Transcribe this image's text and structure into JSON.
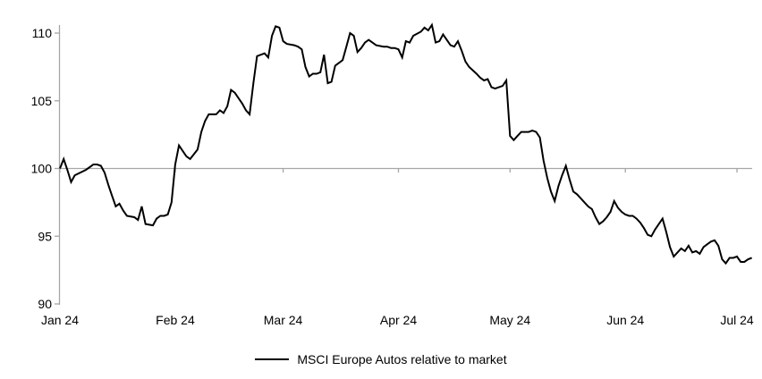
{
  "chart_data": {
    "type": "line",
    "title": "",
    "legend": {
      "label": "MSCI Europe Autos relative to market",
      "position": "bottom-center"
    },
    "line_color": "#000000",
    "axis_color": "#a6a6a6",
    "text_color": "#000000",
    "grid": false,
    "y_axis": {
      "min": 90,
      "max": 110,
      "tick_values": [
        90,
        95,
        100,
        105,
        110
      ],
      "axis_crosses_at": 100
    },
    "x_axis": {
      "ticks": [
        {
          "date": "2024-01-01",
          "label": "Jan 24"
        },
        {
          "date": "2024-02-01",
          "label": "Feb 24"
        },
        {
          "date": "2024-03-01",
          "label": "Mar 24"
        },
        {
          "date": "2024-04-01",
          "label": "Apr 24"
        },
        {
          "date": "2024-05-01",
          "label": "May 24"
        },
        {
          "date": "2024-06-01",
          "label": "Jun 24"
        },
        {
          "date": "2024-07-01",
          "label": "Jul 24"
        }
      ]
    },
    "series": [
      {
        "name": "MSCI Europe Autos relative to market",
        "points": [
          [
            "2024-01-01",
            100.0
          ],
          [
            "2024-01-02",
            100.7
          ],
          [
            "2024-01-03",
            99.9
          ],
          [
            "2024-01-04",
            99.0
          ],
          [
            "2024-01-05",
            99.5
          ],
          [
            "2024-01-08",
            99.9
          ],
          [
            "2024-01-09",
            100.1
          ],
          [
            "2024-01-10",
            100.3
          ],
          [
            "2024-01-11",
            100.3
          ],
          [
            "2024-01-12",
            100.2
          ],
          [
            "2024-01-13",
            99.7
          ],
          [
            "2024-01-14",
            98.8
          ],
          [
            "2024-01-15",
            98.0
          ],
          [
            "2024-01-16",
            97.2
          ],
          [
            "2024-01-17",
            97.4
          ],
          [
            "2024-01-18",
            96.9
          ],
          [
            "2024-01-19",
            96.5
          ],
          [
            "2024-01-21",
            96.4
          ],
          [
            "2024-01-22",
            96.2
          ],
          [
            "2024-01-23",
            97.2
          ],
          [
            "2024-01-24",
            95.9
          ],
          [
            "2024-01-26",
            95.8
          ],
          [
            "2024-01-27",
            96.3
          ],
          [
            "2024-01-28",
            96.5
          ],
          [
            "2024-01-29",
            96.5
          ],
          [
            "2024-01-30",
            96.6
          ],
          [
            "2024-01-31",
            97.5
          ],
          [
            "2024-02-01",
            100.3
          ],
          [
            "2024-02-02",
            101.7
          ],
          [
            "2024-02-04",
            100.9
          ],
          [
            "2024-02-05",
            100.7
          ],
          [
            "2024-02-07",
            101.4
          ],
          [
            "2024-02-08",
            102.7
          ],
          [
            "2024-02-09",
            103.5
          ],
          [
            "2024-02-10",
            104.0
          ],
          [
            "2024-02-12",
            104.0
          ],
          [
            "2024-02-13",
            104.3
          ],
          [
            "2024-02-14",
            104.1
          ],
          [
            "2024-02-15",
            104.6
          ],
          [
            "2024-02-16",
            105.8
          ],
          [
            "2024-02-17",
            105.6
          ],
          [
            "2024-02-18",
            105.2
          ],
          [
            "2024-02-19",
            104.8
          ],
          [
            "2024-02-20",
            104.3
          ],
          [
            "2024-02-21",
            104.0
          ],
          [
            "2024-02-22",
            106.3
          ],
          [
            "2024-02-23",
            108.3
          ],
          [
            "2024-02-25",
            108.5
          ],
          [
            "2024-02-26",
            108.2
          ],
          [
            "2024-02-27",
            109.8
          ],
          [
            "2024-02-28",
            110.5
          ],
          [
            "2024-02-29",
            110.4
          ],
          [
            "2024-03-01",
            109.4
          ],
          [
            "2024-03-02",
            109.2
          ],
          [
            "2024-03-04",
            109.1
          ],
          [
            "2024-03-05",
            109.0
          ],
          [
            "2024-03-06",
            108.8
          ],
          [
            "2024-03-07",
            107.5
          ],
          [
            "2024-03-08",
            106.8
          ],
          [
            "2024-03-09",
            107.0
          ],
          [
            "2024-03-10",
            107.0
          ],
          [
            "2024-03-11",
            107.1
          ],
          [
            "2024-03-12",
            108.4
          ],
          [
            "2024-03-13",
            106.3
          ],
          [
            "2024-03-14",
            106.4
          ],
          [
            "2024-03-15",
            107.6
          ],
          [
            "2024-03-17",
            108.0
          ],
          [
            "2024-03-18",
            109.0
          ],
          [
            "2024-03-19",
            110.0
          ],
          [
            "2024-03-20",
            109.8
          ],
          [
            "2024-03-21",
            108.6
          ],
          [
            "2024-03-22",
            108.9
          ],
          [
            "2024-03-23",
            109.3
          ],
          [
            "2024-03-24",
            109.5
          ],
          [
            "2024-03-25",
            109.3
          ],
          [
            "2024-03-26",
            109.1
          ],
          [
            "2024-03-28",
            109.0
          ],
          [
            "2024-03-29",
            109.0
          ],
          [
            "2024-03-30",
            108.9
          ],
          [
            "2024-03-31",
            108.9
          ],
          [
            "2024-04-01",
            108.8
          ],
          [
            "2024-04-02",
            108.2
          ],
          [
            "2024-04-03",
            109.4
          ],
          [
            "2024-04-04",
            109.3
          ],
          [
            "2024-04-05",
            109.8
          ],
          [
            "2024-04-07",
            110.1
          ],
          [
            "2024-04-08",
            110.4
          ],
          [
            "2024-04-09",
            110.2
          ],
          [
            "2024-04-10",
            110.6
          ],
          [
            "2024-04-11",
            109.3
          ],
          [
            "2024-04-12",
            109.4
          ],
          [
            "2024-04-13",
            109.9
          ],
          [
            "2024-04-15",
            109.1
          ],
          [
            "2024-04-16",
            109.0
          ],
          [
            "2024-04-17",
            109.4
          ],
          [
            "2024-04-18",
            108.7
          ],
          [
            "2024-04-19",
            107.9
          ],
          [
            "2024-04-20",
            107.5
          ],
          [
            "2024-04-22",
            107.0
          ],
          [
            "2024-04-23",
            106.7
          ],
          [
            "2024-04-24",
            106.5
          ],
          [
            "2024-04-25",
            106.6
          ],
          [
            "2024-04-26",
            106.0
          ],
          [
            "2024-04-27",
            105.9
          ],
          [
            "2024-04-29",
            106.1
          ],
          [
            "2024-04-30",
            106.5
          ],
          [
            "2024-05-01",
            102.4
          ],
          [
            "2024-05-02",
            102.1
          ],
          [
            "2024-05-03",
            102.4
          ],
          [
            "2024-05-04",
            102.7
          ],
          [
            "2024-05-06",
            102.7
          ],
          [
            "2024-05-07",
            102.8
          ],
          [
            "2024-05-08",
            102.7
          ],
          [
            "2024-05-09",
            102.3
          ],
          [
            "2024-05-10",
            100.6
          ],
          [
            "2024-05-11",
            99.3
          ],
          [
            "2024-05-12",
            98.3
          ],
          [
            "2024-05-13",
            97.6
          ],
          [
            "2024-05-14",
            98.7
          ],
          [
            "2024-05-15",
            99.5
          ],
          [
            "2024-05-16",
            100.2
          ],
          [
            "2024-05-17",
            99.2
          ],
          [
            "2024-05-18",
            98.3
          ],
          [
            "2024-05-19",
            98.1
          ],
          [
            "2024-05-20",
            97.8
          ],
          [
            "2024-05-21",
            97.5
          ],
          [
            "2024-05-22",
            97.2
          ],
          [
            "2024-05-23",
            97.0
          ],
          [
            "2024-05-24",
            96.4
          ],
          [
            "2024-05-25",
            95.9
          ],
          [
            "2024-05-26",
            96.1
          ],
          [
            "2024-05-27",
            96.4
          ],
          [
            "2024-05-28",
            96.8
          ],
          [
            "2024-05-29",
            97.6
          ],
          [
            "2024-05-30",
            97.1
          ],
          [
            "2024-05-31",
            96.8
          ],
          [
            "2024-06-01",
            96.6
          ],
          [
            "2024-06-02",
            96.5
          ],
          [
            "2024-06-03",
            96.5
          ],
          [
            "2024-06-04",
            96.3
          ],
          [
            "2024-06-05",
            96.0
          ],
          [
            "2024-06-06",
            95.6
          ],
          [
            "2024-06-07",
            95.1
          ],
          [
            "2024-06-08",
            95.0
          ],
          [
            "2024-06-09",
            95.5
          ],
          [
            "2024-06-10",
            95.9
          ],
          [
            "2024-06-11",
            96.3
          ],
          [
            "2024-06-12",
            95.3
          ],
          [
            "2024-06-13",
            94.2
          ],
          [
            "2024-06-14",
            93.5
          ],
          [
            "2024-06-16",
            94.1
          ],
          [
            "2024-06-17",
            93.9
          ],
          [
            "2024-06-18",
            94.3
          ],
          [
            "2024-06-19",
            93.8
          ],
          [
            "2024-06-20",
            93.9
          ],
          [
            "2024-06-21",
            93.7
          ],
          [
            "2024-06-22",
            94.2
          ],
          [
            "2024-06-23",
            94.4
          ],
          [
            "2024-06-24",
            94.6
          ],
          [
            "2024-06-25",
            94.7
          ],
          [
            "2024-06-26",
            94.3
          ],
          [
            "2024-06-27",
            93.3
          ],
          [
            "2024-06-28",
            93.0
          ],
          [
            "2024-06-29",
            93.4
          ],
          [
            "2024-06-30",
            93.4
          ],
          [
            "2024-07-01",
            93.5
          ],
          [
            "2024-07-02",
            93.1
          ],
          [
            "2024-07-03",
            93.1
          ],
          [
            "2024-07-04",
            93.3
          ],
          [
            "2024-07-05",
            93.4
          ]
        ]
      }
    ]
  }
}
